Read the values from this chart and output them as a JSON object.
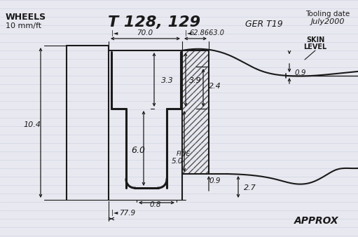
{
  "bg_color": "#e8e8f0",
  "line_color": "#1a1a1a",
  "title": "T 128, 129",
  "subtitle_left1": "WHEELS",
  "subtitle_left2": "10 mm/ft",
  "subtitle_right": "GER T19",
  "tooling1": "Tooling date",
  "tooling2": "July2000",
  "skin1": "SKIN",
  "skin2": "LEVEL",
  "approx": "APPROX",
  "dim_70": "70.0",
  "dim_62": "62.8663.0",
  "dim_33": "3.3",
  "dim_39": "3.9",
  "dim_24": "2.4",
  "dim_104": "10.4",
  "dim_60": "6.0",
  "dim_50": "5.0",
  "dim_fine": "FINE",
  "dim_09": "0.9",
  "dim_08": "0.8",
  "dim_27": "2.7",
  "dim_779": "77.9",
  "dim_09b": "0.9",
  "lined_paper_color": "#b8c4d8",
  "lined_paper_alpha": 0.5,
  "lined_paper_lw": 0.5
}
